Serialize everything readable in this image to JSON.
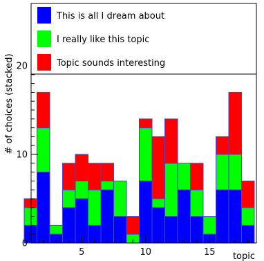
{
  "chart_data": {
    "type": "bar",
    "stacked": true,
    "title": "",
    "xlabel": "topic",
    "ylabel": "# of choices (stacked)",
    "x": [
      1,
      2,
      3,
      4,
      5,
      6,
      7,
      8,
      9,
      10,
      11,
      12,
      13,
      14,
      15,
      16,
      17,
      18
    ],
    "xlim": [
      0.5,
      19.5
    ],
    "ylim": [
      0,
      24
    ],
    "x_ticks": [
      5,
      10,
      15
    ],
    "y_ticks": [
      0,
      10,
      20
    ],
    "grid": false,
    "legend_position": "top",
    "series": [
      {
        "name": "This is all I dream about",
        "color": "#0000ff",
        "values": [
          2,
          8,
          1,
          4,
          5,
          2,
          6,
          3,
          0,
          7,
          4,
          3,
          6,
          3,
          1,
          6,
          6,
          2
        ]
      },
      {
        "name": "I really like this topic",
        "color": "#00ff00",
        "values": [
          2,
          5,
          1,
          2,
          2,
          4,
          1,
          4,
          1,
          6,
          1,
          6,
          3,
          3,
          2,
          4,
          4,
          2
        ]
      },
      {
        "name": "Topic sounds interesting",
        "color": "#ff0000",
        "values": [
          1,
          4,
          0,
          3,
          3,
          3,
          2,
          0,
          2,
          1,
          7,
          5,
          0,
          3,
          0,
          2,
          7,
          3
        ]
      }
    ]
  }
}
